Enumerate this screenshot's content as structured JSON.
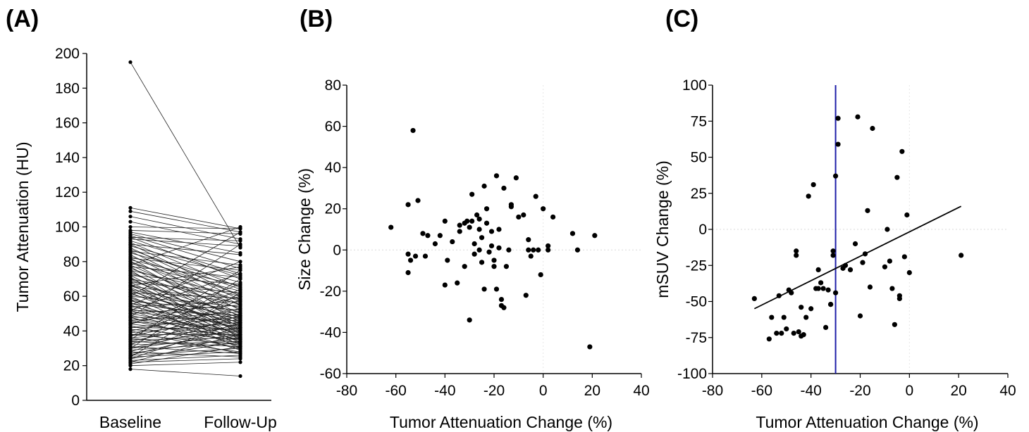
{
  "chart_data": [
    {
      "panel_label": "(A)",
      "type": "line",
      "categories": [
        "Baseline",
        "Follow-Up"
      ],
      "ylabel": "Tumor Attenuation (HU)",
      "xlabel": "",
      "ylim": [
        0,
        200
      ],
      "yticks": [
        0,
        20,
        40,
        60,
        80,
        100,
        120,
        140,
        160,
        180,
        200
      ],
      "grid": false,
      "pairs": [
        [
          195,
          88
        ],
        [
          111,
          99
        ],
        [
          109,
          97
        ],
        [
          106,
          93
        ],
        [
          103,
          90
        ],
        [
          100,
          99
        ],
        [
          98,
          96
        ],
        [
          97,
          85
        ],
        [
          96,
          80
        ],
        [
          95,
          76
        ],
        [
          94,
          70
        ],
        [
          94,
          92
        ],
        [
          93,
          89
        ],
        [
          92,
          73
        ],
        [
          91,
          65
        ],
        [
          90,
          60
        ],
        [
          90,
          84
        ],
        [
          89,
          72
        ],
        [
          88,
          58
        ],
        [
          87,
          64
        ],
        [
          86,
          55
        ],
        [
          86,
          78
        ],
        [
          85,
          68
        ],
        [
          84,
          52
        ],
        [
          83,
          61
        ],
        [
          82,
          75
        ],
        [
          82,
          48
        ],
        [
          81,
          66
        ],
        [
          80,
          57
        ],
        [
          80,
          45
        ],
        [
          79,
          63
        ],
        [
          78,
          50
        ],
        [
          77,
          71
        ],
        [
          77,
          42
        ],
        [
          76,
          55
        ],
        [
          75,
          60
        ],
        [
          75,
          38
        ],
        [
          74,
          47
        ],
        [
          73,
          53
        ],
        [
          72,
          41
        ],
        [
          72,
          67
        ],
        [
          71,
          36
        ],
        [
          70,
          58
        ],
        [
          70,
          44
        ],
        [
          69,
          49
        ],
        [
          68,
          39
        ],
        [
          68,
          62
        ],
        [
          67,
          35
        ],
        [
          66,
          46
        ],
        [
          66,
          56
        ],
        [
          65,
          40
        ],
        [
          64,
          33
        ],
        [
          64,
          51
        ],
        [
          63,
          43
        ],
        [
          62,
          59
        ],
        [
          62,
          37
        ],
        [
          61,
          48
        ],
        [
          60,
          32
        ],
        [
          60,
          54
        ],
        [
          59,
          41
        ],
        [
          58,
          45
        ],
        [
          58,
          30
        ],
        [
          57,
          52
        ],
        [
          56,
          38
        ],
        [
          56,
          47
        ],
        [
          55,
          34
        ],
        [
          54,
          57
        ],
        [
          54,
          42
        ],
        [
          53,
          36
        ],
        [
          52,
          49
        ],
        [
          52,
          31
        ],
        [
          51,
          44
        ],
        [
          50,
          39
        ],
        [
          50,
          55
        ],
        [
          49,
          35
        ],
        [
          48,
          46
        ],
        [
          48,
          29
        ],
        [
          47,
          40
        ],
        [
          46,
          51
        ],
        [
          46,
          33
        ],
        [
          45,
          43
        ],
        [
          44,
          37
        ],
        [
          44,
          60
        ],
        [
          43,
          30
        ],
        [
          42,
          48
        ],
        [
          42,
          41
        ],
        [
          41,
          35
        ],
        [
          40,
          53
        ],
        [
          40,
          27
        ],
        [
          39,
          45
        ],
        [
          38,
          38
        ],
        [
          38,
          32
        ],
        [
          37,
          50
        ],
        [
          36,
          42
        ],
        [
          36,
          28
        ],
        [
          35,
          36
        ],
        [
          34,
          47
        ],
        [
          34,
          31
        ],
        [
          33,
          40
        ],
        [
          32,
          34
        ],
        [
          32,
          58
        ],
        [
          31,
          27
        ],
        [
          30,
          44
        ],
        [
          30,
          38
        ],
        [
          29,
          33
        ],
        [
          28,
          49
        ],
        [
          28,
          25
        ],
        [
          27,
          36
        ],
        [
          26,
          42
        ],
        [
          26,
          30
        ],
        [
          25,
          28
        ],
        [
          24,
          45
        ],
        [
          24,
          34
        ],
        [
          23,
          26
        ],
        [
          22,
          38
        ],
        [
          22,
          24
        ],
        [
          21,
          31
        ],
        [
          20,
          22
        ],
        [
          18,
          14
        ],
        [
          78,
          100
        ],
        [
          60,
          97
        ],
        [
          48,
          90
        ],
        [
          35,
          75
        ],
        [
          25,
          62
        ],
        [
          30,
          70
        ],
        [
          55,
          80
        ],
        [
          44,
          67
        ],
        [
          37,
          64
        ],
        [
          52,
          73
        ],
        [
          66,
          77
        ]
      ]
    },
    {
      "panel_label": "(B)",
      "type": "scatter",
      "xlabel": "Tumor Attenuation Change (%)",
      "ylabel": "Size Change (%)",
      "xlim": [
        -80,
        40
      ],
      "ylim": [
        -60,
        80
      ],
      "xticks": [
        -80,
        -60,
        -40,
        -20,
        0,
        20,
        40
      ],
      "yticks": [
        -60,
        -40,
        -20,
        0,
        20,
        40,
        60,
        80
      ],
      "grid": false,
      "points": [
        [
          -62,
          11
        ],
        [
          -53,
          58
        ],
        [
          -55,
          22
        ],
        [
          -51,
          24
        ],
        [
          -55,
          -2
        ],
        [
          -54,
          -5
        ],
        [
          -55,
          -11
        ],
        [
          -52,
          -3
        ],
        [
          -49,
          8
        ],
        [
          -48,
          -3
        ],
        [
          -47,
          7
        ],
        [
          -44,
          3
        ],
        [
          -40,
          14
        ],
        [
          -40,
          -17
        ],
        [
          -39,
          -5
        ],
        [
          -37,
          4
        ],
        [
          -35,
          -16
        ],
        [
          -34,
          12
        ],
        [
          -34,
          9
        ],
        [
          -32,
          13
        ],
        [
          -31,
          14
        ],
        [
          -30,
          11
        ],
        [
          -29,
          27
        ],
        [
          -29,
          14
        ],
        [
          -28,
          3
        ],
        [
          -28,
          -2
        ],
        [
          -27,
          17
        ],
        [
          -26,
          15
        ],
        [
          -26,
          10
        ],
        [
          -25,
          6
        ],
        [
          -25,
          -6
        ],
        [
          -24,
          31
        ],
        [
          -24,
          -19
        ],
        [
          -23,
          20
        ],
        [
          -23,
          13
        ],
        [
          -22,
          -1
        ],
        [
          -21,
          9
        ],
        [
          -21,
          2
        ],
        [
          -20,
          -5
        ],
        [
          -20,
          -8
        ],
        [
          -19,
          -19
        ],
        [
          -19,
          36
        ],
        [
          -18,
          1
        ],
        [
          -18,
          10
        ],
        [
          -17,
          -24
        ],
        [
          -16,
          30
        ],
        [
          -16,
          -28
        ],
        [
          -15,
          -8
        ],
        [
          -14,
          0
        ],
        [
          -13,
          22
        ],
        [
          -13,
          21
        ],
        [
          -11,
          35
        ],
        [
          -10,
          16
        ],
        [
          -8,
          17
        ],
        [
          -7,
          -22
        ],
        [
          -6,
          5
        ],
        [
          -6,
          0
        ],
        [
          -5,
          -3
        ],
        [
          -4,
          0
        ],
        [
          -3,
          26
        ],
        [
          -2,
          0
        ],
        [
          -1,
          -12
        ],
        [
          0,
          20
        ],
        [
          2,
          0
        ],
        [
          2,
          2
        ],
        [
          4,
          16
        ],
        [
          12,
          8
        ],
        [
          14,
          0
        ],
        [
          19,
          -47
        ],
        [
          21,
          7
        ],
        [
          -32,
          -8
        ],
        [
          -30,
          -34
        ],
        [
          -17,
          -27
        ],
        [
          -42,
          7
        ],
        [
          -26,
          0
        ]
      ]
    },
    {
      "panel_label": "(C)",
      "type": "scatter",
      "xlabel": "Tumor Attenuation Change (%)",
      "ylabel": "mSUV Change (%)",
      "xlim": [
        -80,
        40
      ],
      "ylim": [
        -100,
        100
      ],
      "xticks": [
        -80,
        -60,
        -40,
        -20,
        0,
        20,
        40
      ],
      "yticks": [
        -100,
        -75,
        -50,
        -25,
        0,
        25,
        50,
        75,
        100
      ],
      "grid": false,
      "vline_x": -30,
      "vline_color": "#1f1fa8",
      "regression": {
        "x": [
          -63,
          21
        ],
        "y": [
          -55,
          16
        ]
      },
      "points": [
        [
          -63,
          -48
        ],
        [
          -57,
          -76
        ],
        [
          -56,
          -61
        ],
        [
          -54,
          -72
        ],
        [
          -53,
          -46
        ],
        [
          -52,
          -72
        ],
        [
          -51,
          -61
        ],
        [
          -50,
          -69
        ],
        [
          -49,
          -42
        ],
        [
          -48,
          -44
        ],
        [
          -47,
          -72
        ],
        [
          -46,
          -18
        ],
        [
          -46,
          -15
        ],
        [
          -45,
          -71
        ],
        [
          -44,
          -74
        ],
        [
          -43,
          -73
        ],
        [
          -42,
          -61
        ],
        [
          -41,
          23
        ],
        [
          -40,
          -55
        ],
        [
          -39,
          31
        ],
        [
          -38,
          -41
        ],
        [
          -37,
          -28
        ],
        [
          -37,
          -41
        ],
        [
          -36,
          -37
        ],
        [
          -35,
          -41
        ],
        [
          -34,
          -68
        ],
        [
          -33,
          -42
        ],
        [
          -32,
          -52
        ],
        [
          -31,
          -15
        ],
        [
          -31,
          -18
        ],
        [
          -30,
          -44
        ],
        [
          -30,
          37
        ],
        [
          -29,
          59
        ],
        [
          -29,
          77
        ],
        [
          -27,
          -27
        ],
        [
          -26,
          -25
        ],
        [
          -24,
          -28
        ],
        [
          -22,
          -10
        ],
        [
          -21,
          78
        ],
        [
          -20,
          -60
        ],
        [
          -19,
          -23
        ],
        [
          -18,
          -17
        ],
        [
          -17,
          13
        ],
        [
          -16,
          -40
        ],
        [
          -15,
          70
        ],
        [
          -10,
          -26
        ],
        [
          -9,
          0
        ],
        [
          -8,
          -22
        ],
        [
          -7,
          -41
        ],
        [
          -6,
          -66
        ],
        [
          -5,
          36
        ],
        [
          -4,
          -46
        ],
        [
          -4,
          -48
        ],
        [
          -3,
          54
        ],
        [
          -2,
          -19
        ],
        [
          -1,
          10
        ],
        [
          0,
          -30
        ],
        [
          21,
          -18
        ],
        [
          -32,
          -52
        ],
        [
          -44,
          -54
        ]
      ]
    }
  ]
}
